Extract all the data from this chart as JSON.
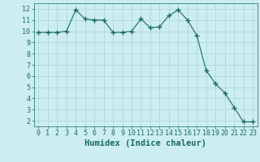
{
  "x": [
    0,
    1,
    2,
    3,
    4,
    5,
    6,
    7,
    8,
    9,
    10,
    11,
    12,
    13,
    14,
    15,
    16,
    17,
    18,
    19,
    20,
    21,
    22,
    23
  ],
  "y": [
    9.9,
    9.9,
    9.9,
    10.0,
    11.9,
    11.1,
    11.0,
    11.0,
    9.9,
    9.9,
    10.0,
    11.1,
    10.3,
    10.4,
    11.4,
    11.9,
    11.0,
    9.6,
    6.5,
    5.3,
    4.5,
    3.2,
    1.9,
    1.9
  ],
  "line_color": "#1a6b5a",
  "marker": "+",
  "marker_size": 4,
  "bg_color": "#cceef0",
  "grid_color": "#aad4d4",
  "xlabel": "Humidex (Indice chaleur)",
  "xlim": [
    -0.5,
    23.5
  ],
  "ylim": [
    1.5,
    12.5
  ],
  "yticks": [
    2,
    3,
    4,
    5,
    6,
    7,
    8,
    9,
    10,
    11,
    12
  ],
  "xticks": [
    0,
    1,
    2,
    3,
    4,
    5,
    6,
    7,
    8,
    9,
    10,
    11,
    12,
    13,
    14,
    15,
    16,
    17,
    18,
    19,
    20,
    21,
    22,
    23
  ],
  "axis_color": "#1a6b5a",
  "tick_color": "#1a6b5a",
  "label_color": "#1a6b5a",
  "tick_fontsize": 6.0,
  "xlabel_fontsize": 7.5
}
